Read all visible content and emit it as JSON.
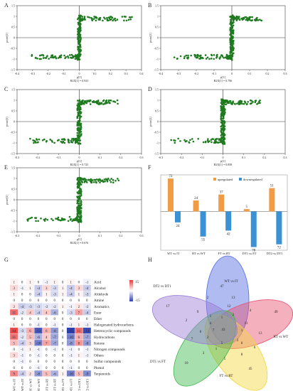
{
  "splots": [
    {
      "id": "A",
      "xlabel": "p[1]",
      "ylabel": "pcorr[1]",
      "caption": "R2X[1] = 0.923",
      "xticks": [
        "-0.4",
        "-0.3",
        "-0.2",
        "-0.1",
        "0",
        "0.1",
        "0.2",
        "0.3",
        "0.4"
      ],
      "yticks": [
        "1.5",
        "1",
        "0.5",
        "0",
        "-0.5",
        "-1",
        "-1.5"
      ]
    },
    {
      "id": "B",
      "xlabel": "p[1]",
      "ylabel": "pcorr[1]",
      "caption": "R2X[1] = 0.796",
      "xticks": [
        "-0.4",
        "-0.3",
        "-0.2",
        "-0.1",
        "0",
        "0.1",
        "0.2",
        "0.3"
      ],
      "yticks": [
        "1.5",
        "1",
        "0.5",
        "0",
        "-0.5",
        "-1",
        "-1.5"
      ]
    },
    {
      "id": "C",
      "xlabel": "p[1]",
      "ylabel": "pcorr[1]",
      "caption": "R2X[1] = 0.725",
      "xticks": [
        "-0.3",
        "-0.2",
        "-0.1",
        "0",
        "0.1",
        "0.2",
        "0.3"
      ],
      "yticks": [
        "1.5",
        "1",
        "0.5",
        "0",
        "-0.5",
        "-1",
        "-1.5"
      ]
    },
    {
      "id": "D",
      "xlabel": "p[1]",
      "ylabel": "pcorr[1]",
      "caption": "R2X[1] = 0.858",
      "xticks": [
        "-0.3",
        "-0.2",
        "-0.1",
        "0",
        "0.1",
        "0.2",
        "0.3"
      ],
      "yticks": [
        "1.5",
        "1",
        "0.5",
        "0",
        "-0.5",
        "-1",
        "-1.5"
      ]
    },
    {
      "id": "E",
      "xlabel": "p[1]",
      "ylabel": "pcorr[1]",
      "caption": "R2X[1] = 0.676",
      "xticks": [
        "-0.3",
        "-0.2",
        "-0.1",
        "0",
        "0.1",
        "0.2",
        "0.3"
      ],
      "yticks": [
        "1.5",
        "1",
        "0.5",
        "0",
        "-0.5",
        "-1",
        "-1.5"
      ]
    }
  ],
  "chart_data": [
    {
      "type": "bar",
      "panel": "F",
      "categories": [
        "WT vs IT",
        "RT vs WT",
        "FT vs RT",
        "DT1 vs FT",
        "DT2 vs DT1"
      ],
      "series": [
        {
          "name": "upregulated",
          "color": "#f29b45",
          "values": [
            72,
            24,
            37,
            5,
            51
          ]
        },
        {
          "name": "downregulated",
          "color": "#3a92d4",
          "values": [
            -24,
            -55,
            -42,
            -78,
            -72
          ]
        }
      ],
      "data_labels": {
        "up": [
          "72",
          "24",
          "37",
          "5",
          "51"
        ],
        "down": [
          "24",
          "55",
          "42",
          "78",
          "72"
        ]
      },
      "ylim": [
        -85,
        80
      ],
      "legend": "top-center"
    },
    {
      "type": "heatmap",
      "panel": "G",
      "columns": [
        "UP-WT vs IT",
        "D-WT vs IT",
        "UP-RT vs WT",
        "D-RT vs WT",
        "UP-FT vs RT",
        "D-FT vs RT",
        "UP-DT1 vs FT",
        "D-DT1 vs FT",
        "UP-DT2 vs DT1",
        "D-DT2 vs DT1"
      ],
      "rows": [
        "Acid",
        "Alcohol",
        "Aldehyde",
        "Amine",
        "Aromatics",
        "Ester",
        "Ether",
        "Halogenated hydrocarbons",
        "Heterocyclic compounds",
        "Hydrocarbons",
        "Ketone",
        "Nitrogen compounds",
        "Others",
        "Sulfur compounds",
        "Phenol",
        "Terpenoids"
      ],
      "values": [
        [
          1,
          0,
          1,
          0,
          -1,
          1,
          0,
          1,
          0,
          -1
        ],
        [
          3,
          -1,
          1,
          -4,
          3,
          -3,
          1,
          -4,
          3,
          -4
        ],
        [
          1,
          0,
          0,
          -4,
          1,
          -3,
          1,
          -4,
          1,
          -3
        ],
        [
          0,
          0,
          0,
          0,
          0,
          0,
          0,
          0,
          0,
          0
        ],
        [
          2,
          -4,
          -3,
          -3,
          -2,
          -2,
          1,
          -1,
          2,
          -2
        ],
        [
          11,
          -2,
          4,
          -4,
          4,
          -6,
          0,
          -3,
          7,
          -4
        ],
        [
          0,
          0,
          0,
          0,
          0,
          0,
          0,
          0,
          0,
          0
        ],
        [
          1,
          0,
          0,
          -1,
          0,
          -1,
          0,
          -1,
          1,
          -1
        ],
        [
          14,
          -3,
          6,
          -13,
          6,
          -8,
          0,
          -15,
          11,
          -14
        ],
        [
          11,
          -2,
          5,
          -6,
          4,
          -7,
          0,
          -10,
          6,
          -7
        ],
        [
          5,
          -4,
          3,
          -10,
          7,
          -7,
          0,
          -8,
          8,
          -8
        ],
        [
          0,
          -1,
          1,
          -1,
          0,
          -1,
          0,
          -1,
          0,
          -1
        ],
        [
          3,
          -1,
          0,
          -1,
          0,
          0,
          0,
          -1,
          1,
          -1
        ],
        [
          0,
          -1,
          0,
          0,
          0,
          0,
          0,
          0,
          0,
          0
        ],
        [
          0,
          0,
          0,
          -1,
          0,
          0,
          0,
          -1,
          0,
          0
        ],
        [
          9,
          -4,
          2,
          -8,
          5,
          -6,
          1,
          -10,
          5,
          -9
        ]
      ],
      "colorbar": {
        "max": "15",
        "min": "-15",
        "pos": "#e83a3a",
        "neg": "#2f3fb0",
        "mid": "#ffffff"
      }
    }
  ],
  "venn": {
    "panel": "H",
    "sets": [
      {
        "name": "WT vs IT",
        "color": "#4f6be0"
      },
      {
        "name": "RT vs WT",
        "color": "#e8506e"
      },
      {
        "name": "FT vs RT",
        "color": "#f4d63d"
      },
      {
        "name": "DT1 vs FT",
        "color": "#3fb84d"
      },
      {
        "name": "DT2 vs DT1",
        "color": "#9b7bd6"
      }
    ],
    "numbers": [
      "47",
      "49",
      "45",
      "10",
      "17",
      "13",
      "13",
      "8",
      "3",
      "2",
      "2",
      "4",
      "6",
      "5",
      "7",
      "9",
      "12",
      "11",
      "6",
      "1",
      "0",
      "1",
      "2",
      "1",
      "3",
      "5",
      "2",
      "4",
      "1",
      "43",
      "7"
    ]
  },
  "panel_letters": [
    "A",
    "B",
    "C",
    "D",
    "E",
    "F",
    "G",
    "H"
  ]
}
